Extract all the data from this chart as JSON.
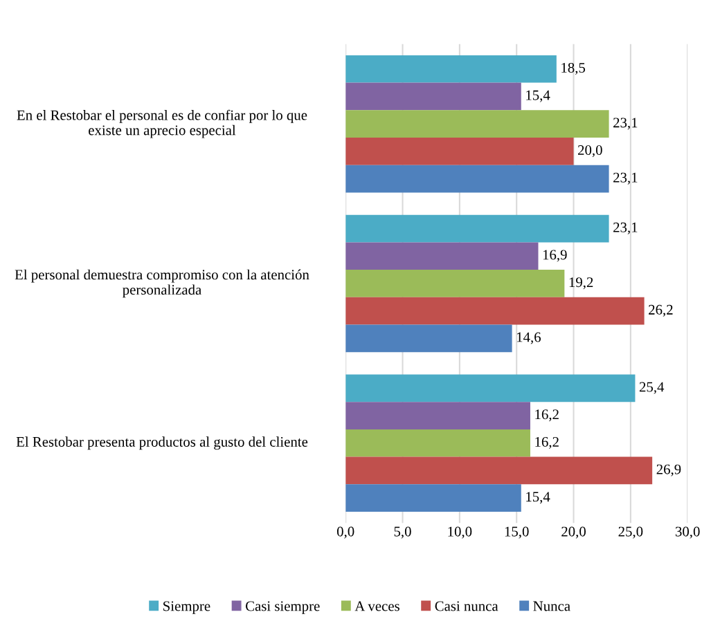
{
  "chart_data": {
    "type": "bar",
    "orientation": "horizontal",
    "categories": [
      "En el Restobar el personal es de confiar por lo que existe un aprecio especial",
      "El personal demuestra compromiso con la atención personalizada",
      "El Restobar presenta productos al gusto del cliente"
    ],
    "series": [
      {
        "name": "Siempre",
        "color": "#4bacc6",
        "values": [
          18.5,
          23.1,
          25.4
        ],
        "value_labels": [
          "18,5",
          "23,1",
          "25,4"
        ]
      },
      {
        "name": "Casi siempre",
        "color": "#8064a2",
        "values": [
          15.4,
          16.9,
          16.2
        ],
        "value_labels": [
          "15,4",
          "16,9",
          "16,2"
        ]
      },
      {
        "name": "A veces",
        "color": "#9bbb59",
        "values": [
          23.1,
          19.2,
          16.2
        ],
        "value_labels": [
          "23,1",
          "19,2",
          "16,2"
        ]
      },
      {
        "name": "Casi nunca",
        "color": "#c0504d",
        "values": [
          20.0,
          26.2,
          26.9
        ],
        "value_labels": [
          "20,0",
          "26,2",
          "26,9"
        ]
      },
      {
        "name": "Nunca",
        "color": "#4f81bd",
        "values": [
          23.1,
          14.6,
          15.4
        ],
        "value_labels": [
          "23,1",
          "14,6",
          "15,4"
        ]
      }
    ],
    "xlim": [
      0,
      30
    ],
    "xticks": [
      {
        "value": 0,
        "label": "0,0"
      },
      {
        "value": 5,
        "label": "5,0"
      },
      {
        "value": 10,
        "label": "10,0"
      },
      {
        "value": 15,
        "label": "15,0"
      },
      {
        "value": 20,
        "label": "20,0"
      },
      {
        "value": 25,
        "label": "25,0"
      },
      {
        "value": 30,
        "label": "30,0"
      }
    ],
    "grid": "x",
    "legend": "bottom"
  }
}
